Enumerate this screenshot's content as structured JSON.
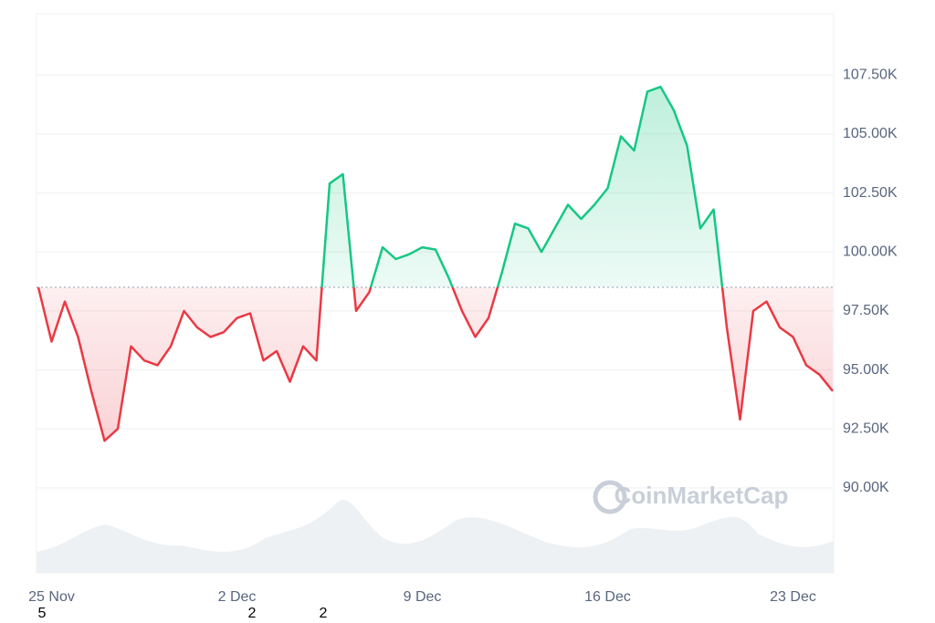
{
  "chart_data": {
    "type": "baseline-line",
    "watermark": "CoinMarketCap",
    "categories": [
      null,
      "25 Nov",
      null,
      null,
      null,
      null,
      null,
      null,
      null,
      null,
      null,
      null,
      null,
      null,
      null,
      "2 Dec",
      null,
      null,
      null,
      null,
      null,
      null,
      null,
      null,
      null,
      null,
      null,
      null,
      null,
      "9 Dec",
      null,
      null,
      null,
      null,
      null,
      null,
      null,
      null,
      null,
      null,
      null,
      null,
      null,
      "16 Dec",
      null,
      null,
      null,
      null,
      null,
      null,
      null,
      null,
      null,
      null,
      null,
      null,
      null,
      "23 Dec",
      null,
      null,
      null
    ],
    "values": [
      98.5,
      96.2,
      97.9,
      96.4,
      94.1,
      92.0,
      92.5,
      96.0,
      95.4,
      95.2,
      96.0,
      97.5,
      96.8,
      96.4,
      96.6,
      97.2,
      97.4,
      95.4,
      95.8,
      94.5,
      96.0,
      95.4,
      102.9,
      103.3,
      97.5,
      98.3,
      100.2,
      99.7,
      99.9,
      100.2,
      100.1,
      98.9,
      97.5,
      96.4,
      97.2,
      99.1,
      101.2,
      101.0,
      100.0,
      101.0,
      102.0,
      101.4,
      102.0,
      102.7,
      104.9,
      104.3,
      106.8,
      107.0,
      106.0,
      104.5,
      101.0,
      101.8,
      96.8,
      92.9,
      97.5,
      97.9,
      96.8,
      96.4,
      95.2,
      94.8,
      94.1
    ],
    "baseline": 98.5,
    "up_color": "#16c784",
    "down_color": "#ea3943",
    "ylim": [
      86.4,
      110.1
    ],
    "yticks": [
      {
        "value": 90,
        "label": "90.00K"
      },
      {
        "value": 92.5,
        "label": "92.50K"
      },
      {
        "value": 95,
        "label": "95.00K"
      },
      {
        "value": 97.5,
        "label": "97.50K"
      },
      {
        "value": 100,
        "label": "100.00K"
      },
      {
        "value": 102.5,
        "label": "102.50K"
      },
      {
        "value": 105,
        "label": "105.00K"
      },
      {
        "value": 107.5,
        "label": "107.50K"
      }
    ],
    "grid": true,
    "footer_marks": [
      "5",
      "2",
      "2"
    ]
  }
}
